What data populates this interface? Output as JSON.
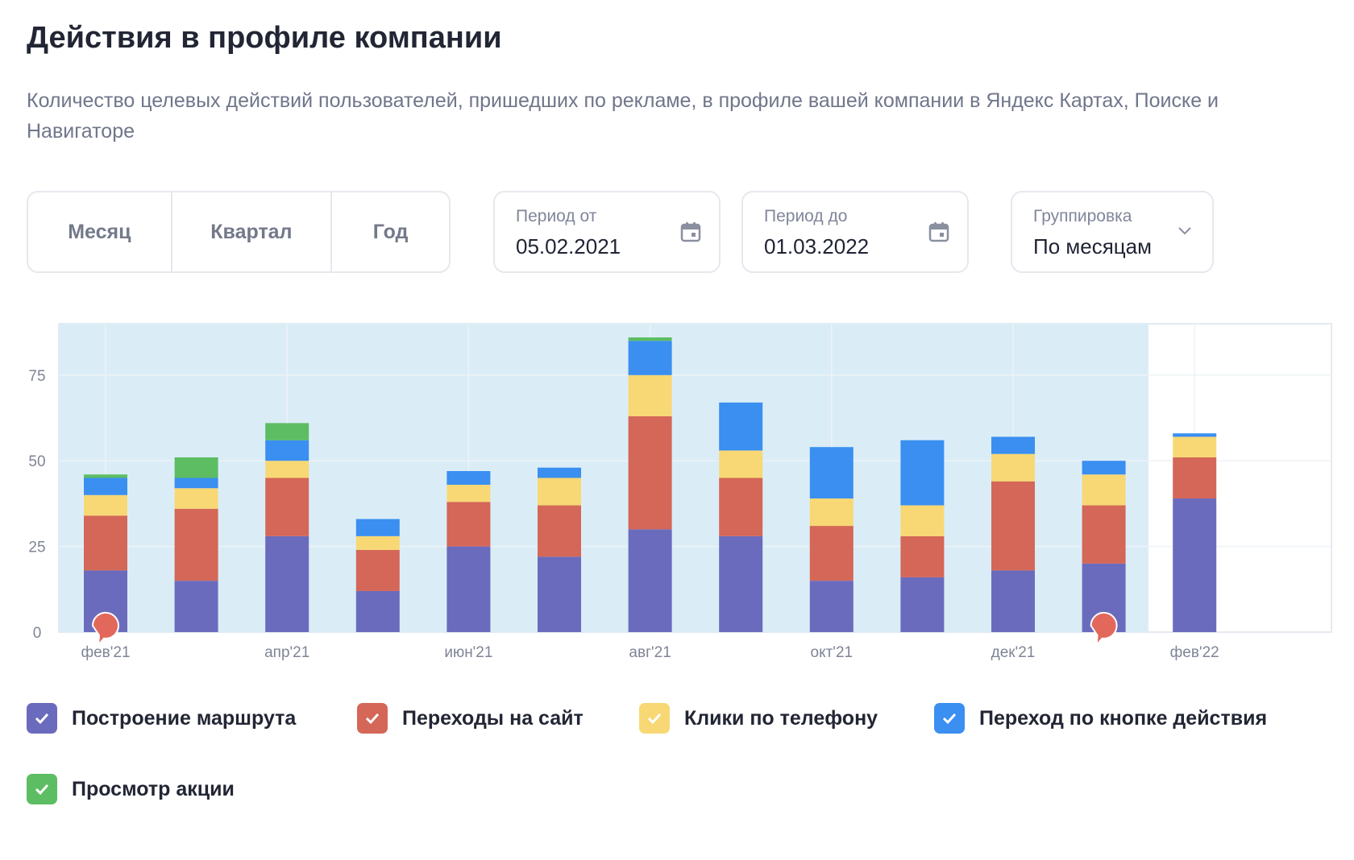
{
  "page": {
    "title": "Действия в профиле компании",
    "description": "Количество целевых действий пользователей, пришедших по рекламе, в профиле вашей компании в Яндекс Картах, Поиске и Навигаторе"
  },
  "controls": {
    "period_buttons": [
      "Месяц",
      "Квартал",
      "Год"
    ],
    "date_from": {
      "label": "Период от",
      "value": "05.02.2021",
      "icon": "calendar-icon"
    },
    "date_to": {
      "label": "Период до",
      "value": "01.03.2022",
      "icon": "calendar-icon"
    },
    "grouping": {
      "label": "Группировка",
      "value": "По месяцам",
      "icon": "chevron-down-icon"
    }
  },
  "colors": {
    "route": "#6b6bbd",
    "site": "#d46757",
    "phone": "#f8d874",
    "action": "#3a8ff0",
    "promo": "#5dbd62",
    "selected_band": "#daedf7",
    "grid": "#ffffff",
    "axis_text": "#7f8596",
    "marker": "#e2685c"
  },
  "chart_data": {
    "type": "bar",
    "stacked": true,
    "categories": [
      "фев'21",
      "мар'21",
      "апр'21",
      "май'21",
      "июн'21",
      "июл'21",
      "авг'21",
      "сен'21",
      "окт'21",
      "ноя'21",
      "дек'21",
      "янв'22",
      "фев'22"
    ],
    "x_tick_labels": [
      "фев'21",
      "",
      "апр'21",
      "",
      "июн'21",
      "",
      "авг'21",
      "",
      "окт'21",
      "",
      "дек'21",
      "",
      "фев'22"
    ],
    "y_ticks": [
      0,
      25,
      50,
      75
    ],
    "ylim": [
      0,
      90
    ],
    "grid": true,
    "selected_range": [
      "фев'21",
      "янв'22"
    ],
    "markers_at": [
      "фев'21",
      "янв'22"
    ],
    "series": [
      {
        "name": "Построение маршрута",
        "color_key": "route",
        "values": [
          18,
          15,
          28,
          12,
          25,
          22,
          30,
          28,
          15,
          16,
          18,
          20,
          39
        ]
      },
      {
        "name": "Переходы на сайт",
        "color_key": "site",
        "values": [
          16,
          21,
          17,
          12,
          13,
          15,
          33,
          17,
          16,
          12,
          26,
          17,
          12
        ]
      },
      {
        "name": "Клики по телефону",
        "color_key": "phone",
        "values": [
          6,
          6,
          5,
          4,
          5,
          8,
          12,
          8,
          8,
          9,
          8,
          9,
          6
        ]
      },
      {
        "name": "Переход по кнопке действия",
        "color_key": "action",
        "values": [
          5,
          3,
          6,
          5,
          4,
          3,
          10,
          14,
          15,
          19,
          5,
          4,
          1
        ]
      },
      {
        "name": "Просмотр акции",
        "color_key": "promo",
        "values": [
          1,
          6,
          5,
          0,
          0,
          0,
          1,
          0,
          0,
          0,
          0,
          0,
          0
        ]
      }
    ]
  },
  "legend": [
    {
      "label": "Построение маршрута",
      "color_key": "route",
      "checked": true
    },
    {
      "label": "Переходы на сайт",
      "color_key": "site",
      "checked": true
    },
    {
      "label": "Клики по телефону",
      "color_key": "phone",
      "checked": true
    },
    {
      "label": "Переход по кнопке действия",
      "color_key": "action",
      "checked": true
    },
    {
      "label": "Просмотр акции",
      "color_key": "promo",
      "checked": true
    }
  ]
}
